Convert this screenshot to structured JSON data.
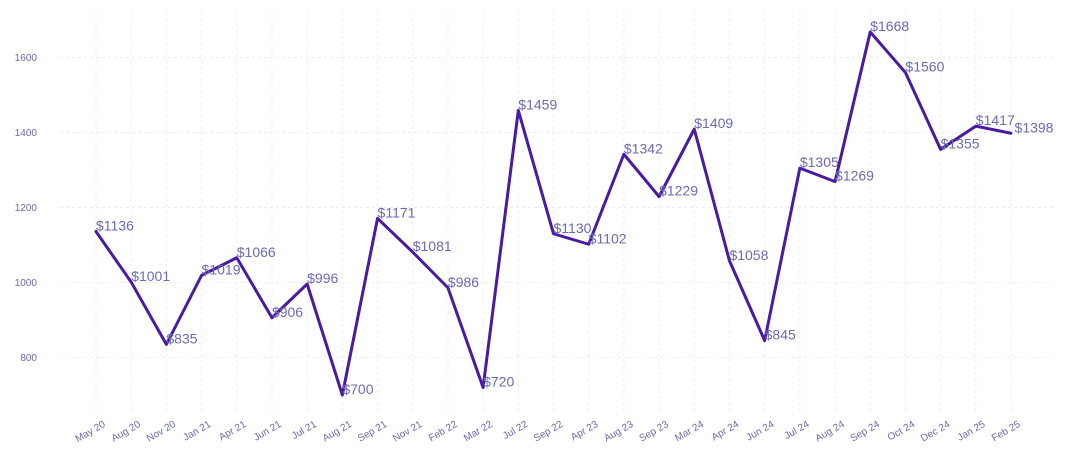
{
  "chart_data": {
    "type": "line",
    "title": "",
    "xlabel": "",
    "ylabel": "",
    "ylim": [
      660,
      1720
    ],
    "yticks": [
      800,
      1000,
      1200,
      1400,
      1600
    ],
    "grid": true,
    "line_color": "#4a1aa0",
    "label_color": "#6b6bb0",
    "value_prefix": "$",
    "categories": [
      "May 20",
      "Aug 20",
      "Nov 20",
      "Jan 21",
      "Apr 21",
      "Jun 21",
      "Jul 21",
      "Aug 21",
      "Sep 21",
      "Nov 21",
      "Feb 22",
      "Mar 22",
      "Jul 22",
      "Sep 22",
      "Apr 23",
      "Aug 23",
      "Sep 23",
      "Mar 24",
      "Apr 24",
      "Jun 24",
      "Jul 24",
      "Aug 24",
      "Sep 24",
      "Oct 24",
      "Dec 24",
      "Jan 25",
      "Feb 25"
    ],
    "values": [
      1136,
      1001,
      835,
      1019,
      1066,
      906,
      996,
      700,
      1171,
      1081,
      986,
      720,
      1459,
      1130,
      1102,
      1342,
      1229,
      1409,
      1058,
      845,
      1305,
      1269,
      1668,
      1560,
      1355,
      1417,
      1398
    ],
    "data_labels": [
      "$1136",
      "$1001",
      "$835",
      "$1019",
      "$1066",
      "$906",
      "$996",
      "$700",
      "$1171",
      "$1081",
      "$986",
      "$720",
      "$1459",
      "$1130",
      "$1102",
      "$1342",
      "$1229",
      "$1409",
      "$1058",
      "$845",
      "$1305",
      "$1269",
      "$1668",
      "$1560",
      "$1355",
      "$1417",
      "$1398"
    ]
  }
}
